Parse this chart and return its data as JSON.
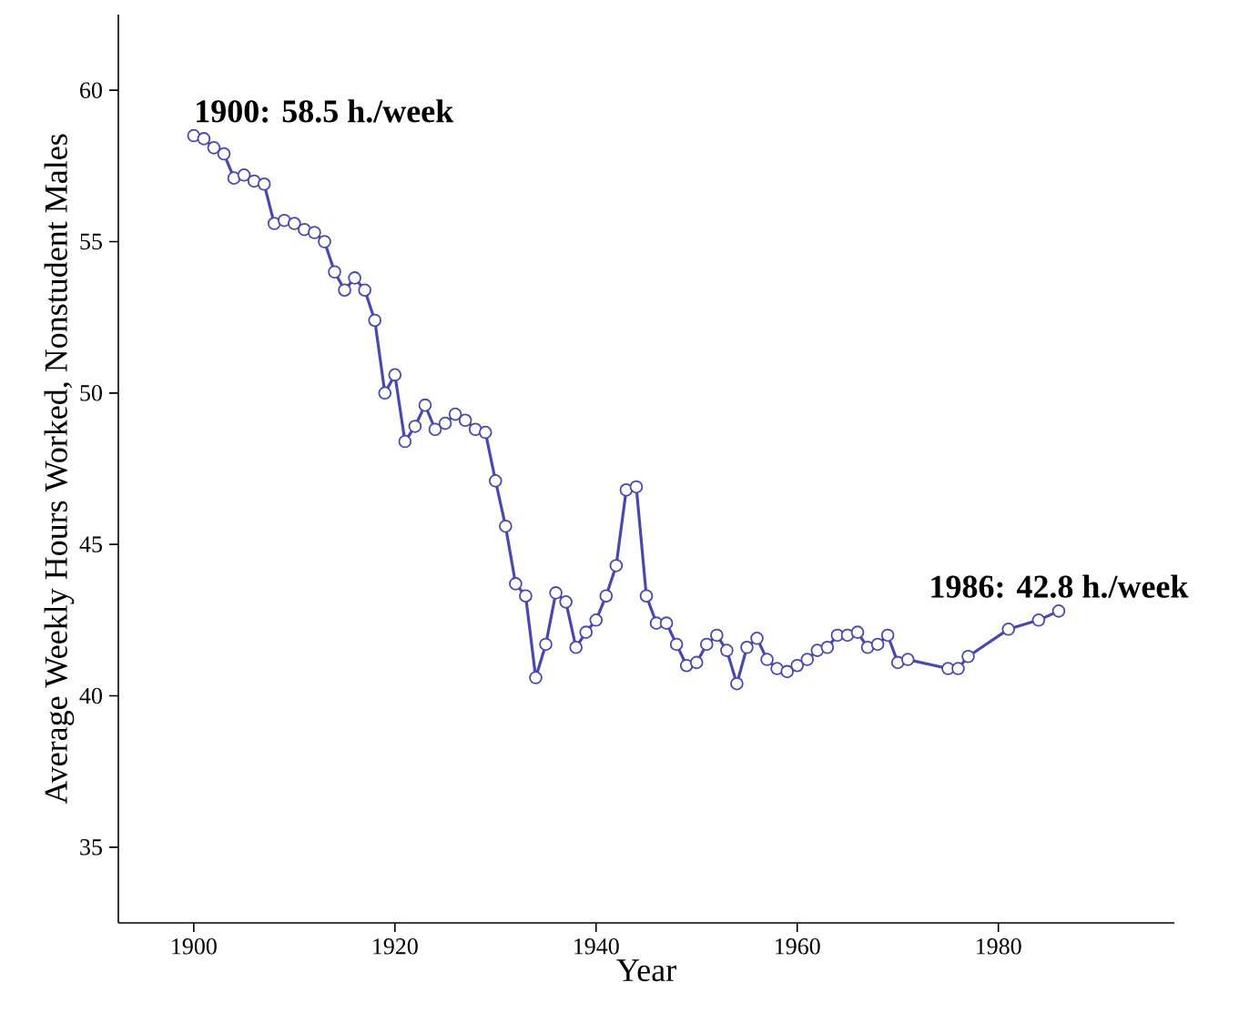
{
  "chart_data": {
    "type": "line",
    "xlabel": "Year",
    "ylabel": "Average Weekly Hours Worked, Nonstudent Males",
    "x": [
      1900,
      1901,
      1902,
      1903,
      1904,
      1905,
      1906,
      1907,
      1908,
      1909,
      1910,
      1911,
      1912,
      1913,
      1914,
      1915,
      1916,
      1917,
      1918,
      1919,
      1920,
      1921,
      1922,
      1923,
      1924,
      1925,
      1926,
      1927,
      1928,
      1929,
      1930,
      1931,
      1932,
      1933,
      1934,
      1935,
      1936,
      1937,
      1938,
      1939,
      1940,
      1941,
      1942,
      1943,
      1944,
      1945,
      1946,
      1947,
      1948,
      1949,
      1950,
      1951,
      1952,
      1953,
      1954,
      1955,
      1956,
      1957,
      1958,
      1959,
      1960,
      1961,
      1962,
      1963,
      1964,
      1965,
      1966,
      1967,
      1968,
      1969,
      1970,
      1971,
      1975,
      1976,
      1977,
      1981,
      1984,
      1986
    ],
    "values": [
      58.5,
      58.4,
      58.1,
      57.9,
      57.1,
      57.2,
      57.0,
      56.9,
      55.6,
      55.7,
      55.6,
      55.4,
      55.3,
      55.0,
      54.0,
      53.4,
      53.8,
      53.4,
      52.4,
      50.0,
      50.6,
      48.4,
      48.9,
      49.6,
      48.8,
      49.0,
      49.3,
      49.1,
      48.8,
      48.7,
      47.1,
      45.6,
      43.7,
      43.3,
      40.6,
      41.7,
      43.4,
      43.1,
      41.6,
      42.1,
      42.5,
      43.3,
      44.3,
      46.8,
      46.9,
      43.3,
      42.4,
      42.4,
      41.7,
      41.0,
      41.1,
      41.7,
      42.0,
      41.5,
      40.4,
      41.6,
      41.9,
      41.2,
      40.9,
      40.8,
      41.0,
      41.2,
      41.5,
      41.6,
      42.0,
      42.0,
      42.1,
      41.6,
      41.7,
      42.0,
      41.1,
      41.2,
      40.9,
      40.9,
      41.3,
      42.2,
      42.5,
      42.8
    ],
    "color": "#4848b0",
    "marker": "circle",
    "xlim": [
      1892.5,
      1997.5
    ],
    "ylim": [
      32.5,
      62.5
    ],
    "xticks": [
      1900,
      1920,
      1940,
      1960,
      1980
    ],
    "yticks": [
      35,
      40,
      45,
      50,
      55,
      60
    ],
    "annotations": [
      {
        "text": "1900: 58.5 h./week",
        "x": 1900,
        "y": 58.5
      },
      {
        "text": "1986: 42.8 h./week",
        "x": 1986,
        "y": 42.8
      }
    ]
  }
}
